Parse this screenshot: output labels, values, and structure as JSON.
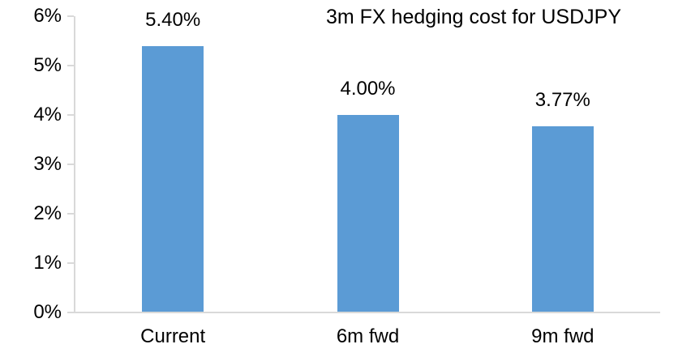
{
  "chart_data": {
    "type": "bar",
    "title": "3m FX hedging cost for USDJPY",
    "categories": [
      "Current",
      "6m fwd",
      "9m fwd"
    ],
    "values": [
      5.4,
      4.0,
      3.77
    ],
    "value_labels": [
      "5.40%",
      "4.00%",
      "3.77%"
    ],
    "y_tick_labels": [
      "6%",
      "5%",
      "4%",
      "3%",
      "2%",
      "1%",
      "0%"
    ],
    "ylim": [
      0,
      6
    ],
    "xlabel": "",
    "ylabel": "",
    "grid": false,
    "legend": false,
    "colors": {
      "bar": "#5B9BD5",
      "axis": "#D9D9D9",
      "text": "#000000",
      "background": "#FFFFFF"
    }
  }
}
